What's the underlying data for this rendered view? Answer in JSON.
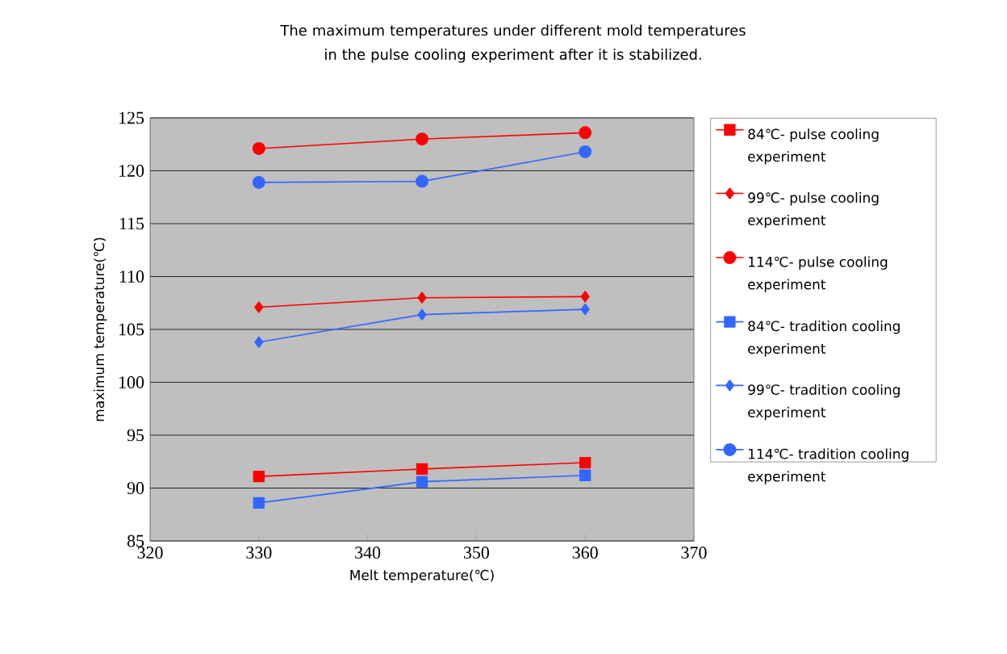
{
  "chart_data": {
    "type": "line",
    "title": "The maximum temperatures under different mold temperatures in the pulse cooling experiment after it is stabilized.",
    "xlabel": "Melt temperature(℃)",
    "ylabel": "maximum temperature(℃)",
    "x": [
      330,
      345,
      360
    ],
    "xlim": [
      320,
      370
    ],
    "xticks": [
      320,
      330,
      340,
      350,
      360,
      370
    ],
    "ylim": [
      85,
      125
    ],
    "yticks": [
      85,
      90,
      95,
      100,
      105,
      110,
      115,
      120,
      125
    ],
    "grid": "y",
    "legend": "right",
    "series": [
      {
        "name": "84℃- pulse cooling experiment",
        "color": "#ff0000",
        "marker": "square",
        "values": [
          91.1,
          91.8,
          92.4
        ]
      },
      {
        "name": "99℃- pulse cooling experiment",
        "color": "#ff0000",
        "marker": "diamond",
        "values": [
          107.1,
          108.0,
          108.1
        ]
      },
      {
        "name": "114℃- pulse cooling experiment",
        "color": "#ff0000",
        "marker": "circle",
        "values": [
          122.1,
          123.0,
          123.6
        ]
      },
      {
        "name": "84℃- tradition cooling experiment",
        "color": "#3366ff",
        "marker": "square",
        "values": [
          88.6,
          90.6,
          91.2
        ]
      },
      {
        "name": "99℃- tradition cooling experiment",
        "color": "#3366ff",
        "marker": "diamond",
        "values": [
          103.8,
          106.4,
          106.9
        ]
      },
      {
        "name": "114℃- tradition cooling experiment",
        "color": "#3366ff",
        "marker": "circle",
        "values": [
          118.9,
          119.0,
          121.8
        ]
      }
    ]
  }
}
